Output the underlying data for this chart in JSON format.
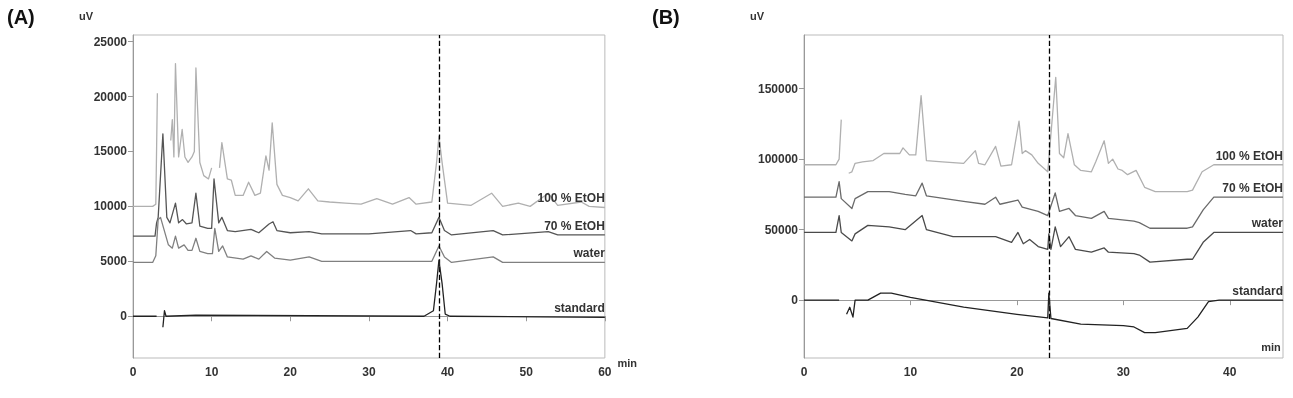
{
  "chart_data": [
    {
      "type": "line",
      "title": "(A)",
      "ylabel": "uV",
      "xlabel": "min",
      "xlim": [
        0,
        60
      ],
      "ylim": [
        -3800,
        25600
      ],
      "xticks": [
        0,
        10,
        20,
        30,
        40,
        50,
        60
      ],
      "yticks": [
        0,
        5000,
        10000,
        15000,
        20000,
        25000
      ],
      "ref_lines": [
        {
          "axis": "x",
          "value": 38.9,
          "color": "#000000",
          "line_style": "dashed"
        }
      ],
      "series": [
        {
          "name": "100 % EtOH",
          "color": "#b0b0b0",
          "x": [
            0,
            2.5,
            2.9,
            3.1,
            3.3,
            3.6,
            4.4,
            4.6,
            4.8,
            5.0,
            5.2,
            5.4,
            5.8,
            6.25,
            6.6,
            7.0,
            7.5,
            7.8,
            8.0,
            8.5,
            9.0,
            9.6,
            10.0,
            10.1,
            10.7,
            11.0,
            11.3,
            12.0,
            12.5,
            13,
            14,
            14.7,
            15.5,
            16.2,
            16.9,
            17.3,
            17.7,
            18.3,
            19,
            20,
            21,
            22.3,
            23.5,
            25,
            27,
            29,
            31,
            33,
            35.1,
            36,
            38,
            38.6,
            38.9,
            39.3,
            40,
            43,
            45.6,
            47,
            49,
            50.5,
            52.8,
            54,
            57,
            58,
            60
          ],
          "values": [
            10000,
            10000,
            10200,
            20300,
            null,
            null,
            null,
            null,
            16000,
            17900,
            14500,
            23000,
            14500,
            17000,
            14500,
            14000,
            14500,
            15000,
            22600,
            14000,
            12800,
            12500,
            13500,
            null,
            null,
            13500,
            15800,
            12500,
            12400,
            11000,
            11000,
            12200,
            11000,
            11200,
            14600,
            13300,
            17600,
            12000,
            11000,
            10800,
            10500,
            11600,
            10500,
            10400,
            10300,
            10200,
            10700,
            10200,
            10800,
            10200,
            10400,
            14000,
            16400,
            14000,
            10300,
            10100,
            11200,
            10000,
            10300,
            10000,
            11200,
            10100,
            10400,
            10000,
            9900
          ]
        },
        {
          "name": "70 % EtOH",
          "color": "#555555",
          "x": [
            0,
            2.8,
            3.0,
            3.2,
            3.8,
            4.3,
            4.7,
            5.4,
            5.8,
            6.3,
            6.8,
            7.5,
            8.0,
            8.5,
            9.5,
            10.0,
            10.3,
            10.9,
            11.3,
            12,
            13,
            15,
            16,
            17.3,
            17.8,
            18.3,
            20,
            22.4,
            24,
            30,
            35.3,
            36,
            38,
            38.9,
            39.6,
            40.5,
            45.8,
            47,
            52.8,
            54,
            60
          ],
          "values": [
            7300,
            7300,
            8500,
            9000,
            16600,
            9000,
            8500,
            10300,
            8500,
            8800,
            8400,
            8500,
            11200,
            8200,
            8000,
            8000,
            12500,
            8500,
            9000,
            7800,
            7700,
            7900,
            7600,
            8400,
            8600,
            7800,
            7600,
            7700,
            7500,
            7500,
            7800,
            7500,
            7600,
            9000,
            7800,
            7400,
            7800,
            7400,
            7700,
            7400,
            7400
          ]
        },
        {
          "name": "water",
          "color": "#808080",
          "x": [
            0,
            2.5,
            2.9,
            3.2,
            3.5,
            4.5,
            5.0,
            5.4,
            5.8,
            6.5,
            7.0,
            7.5,
            8.0,
            8.5,
            9.5,
            10.1,
            10.4,
            10.9,
            11.4,
            12,
            14,
            15,
            16,
            17,
            18,
            20,
            22.4,
            24,
            30,
            38,
            38.9,
            39.6,
            40.5,
            45.8,
            47,
            60
          ],
          "values": [
            4900,
            4900,
            5500,
            8800,
            9000,
            6500,
            6200,
            7300,
            6200,
            6500,
            6000,
            6000,
            7100,
            5900,
            5700,
            5700,
            8000,
            5900,
            6400,
            5400,
            5200,
            5500,
            5200,
            5900,
            5300,
            5100,
            5400,
            5000,
            5000,
            5000,
            6400,
            5400,
            4900,
            5400,
            4900,
            4900
          ]
        },
        {
          "name": "standard",
          "color": "#222222",
          "x": [
            0,
            3.0,
            3.1,
            3.35,
            3.6,
            3.8,
            4.0,
            4.2,
            8,
            37,
            38.2,
            38.6,
            38.9,
            39.3,
            39.7,
            40.3,
            60
          ],
          "values": [
            0,
            0,
            null,
            null,
            null,
            -1000,
            500,
            0,
            100,
            0,
            500,
            3000,
            5100,
            3000,
            200,
            0,
            -100
          ]
        }
      ]
    },
    {
      "type": "line",
      "title": "(B)",
      "ylabel": "uV",
      "xlabel": "min",
      "xlim": [
        0,
        45
      ],
      "ylim": [
        -41000,
        188000
      ],
      "xticks": [
        0,
        10,
        20,
        30,
        40
      ],
      "yticks": [
        0,
        50000,
        100000,
        150000
      ],
      "ref_lines": [
        {
          "axis": "x",
          "value": 23,
          "color": "#000000",
          "line_style": "dashed"
        }
      ],
      "series": [
        {
          "name": "100 % EtOH",
          "color": "#b0b0b0",
          "x": [
            0,
            3.0,
            3.3,
            3.5,
            3.7,
            4.2,
            4.5,
            4.8,
            5.5,
            6.5,
            7.5,
            9.0,
            9.3,
            9.9,
            10.5,
            11.0,
            11.5,
            13,
            15,
            16.1,
            16.4,
            17,
            18.0,
            18.5,
            19.5,
            20.2,
            20.5,
            20.8,
            21.4,
            22,
            22.9,
            23.65,
            24.0,
            24.4,
            24.8,
            25.4,
            26,
            27,
            27.4,
            28.2,
            28.6,
            29,
            29.5,
            29.9,
            30.4,
            31.2,
            32,
            33,
            36,
            36.5,
            37.4,
            38.5,
            45
          ],
          "values": [
            96000,
            96000,
            100000,
            128000,
            null,
            90000,
            91000,
            97000,
            98000,
            99000,
            104000,
            104000,
            108000,
            103000,
            103000,
            145000,
            99000,
            98000,
            97000,
            106000,
            97000,
            96000,
            109000,
            95000,
            96000,
            127000,
            104000,
            106000,
            103000,
            97000,
            91000,
            158000,
            104000,
            101000,
            118000,
            96000,
            92000,
            91000,
            98000,
            113000,
            97000,
            100000,
            93000,
            92000,
            89000,
            92000,
            80000,
            77000,
            77000,
            78000,
            91000,
            96000,
            96000
          ]
        },
        {
          "name": "70 % EtOH",
          "color": "#6a6a6a",
          "x": [
            0,
            3.0,
            3.3,
            3.5,
            4.5,
            4.8,
            6,
            8,
            9.5,
            10.5,
            11.1,
            11.5,
            15,
            17,
            18.0,
            18.4,
            20.1,
            20.5,
            22,
            22.9,
            23.6,
            24,
            24.9,
            25.5,
            27,
            28.2,
            28.6,
            31,
            31.5,
            32.5,
            36,
            36.5,
            37.5,
            38.5,
            45
          ],
          "values": [
            73000,
            73000,
            84000,
            72000,
            65000,
            72000,
            77000,
            77000,
            75000,
            74000,
            83000,
            74000,
            70000,
            68000,
            73000,
            68000,
            71000,
            66000,
            63000,
            60000,
            76000,
            63000,
            65000,
            60000,
            58000,
            63000,
            58000,
            56000,
            55000,
            51000,
            51000,
            52000,
            64000,
            73000,
            73000
          ]
        },
        {
          "name": "water",
          "color": "#4a4a4a",
          "x": [
            0,
            3.0,
            3.3,
            3.5,
            4.5,
            4.8,
            6,
            8,
            9.5,
            11.1,
            11.5,
            14,
            16.1,
            18,
            19.5,
            20.1,
            20.6,
            21.2,
            22,
            22.9,
            23.0,
            23.2,
            23.6,
            24.1,
            24.9,
            25.5,
            27,
            28.2,
            28.6,
            31,
            31.5,
            32.5,
            36,
            36.5,
            37.5,
            38.5,
            45
          ],
          "values": [
            48000,
            48000,
            60000,
            48000,
            42000,
            47000,
            53000,
            52000,
            50000,
            60000,
            50000,
            45000,
            45000,
            45000,
            41000,
            48000,
            40000,
            43000,
            38000,
            36000,
            47000,
            36000,
            52000,
            38000,
            45000,
            36000,
            34000,
            37000,
            34000,
            33000,
            32000,
            27000,
            29000,
            29000,
            41000,
            48000,
            48000
          ]
        },
        {
          "name": "standard",
          "color": "#222222",
          "x": [
            0,
            3.3,
            3.45,
            3.65,
            3.85,
            4.0,
            4.3,
            4.6,
            4.8,
            6,
            7.2,
            8.2,
            10,
            15,
            20,
            22.9,
            23.0,
            23.2,
            26,
            30,
            31,
            32,
            33,
            36,
            37,
            38,
            39,
            45
          ],
          "values": [
            0,
            0,
            null,
            null,
            null,
            -10000,
            -5000,
            -12000,
            0,
            0,
            5000,
            5000,
            2000,
            -5000,
            -10000,
            -12500,
            5000,
            -13000,
            -17000,
            -18000,
            -19000,
            -23000,
            -23000,
            -20000,
            -12000,
            -1000,
            0,
            0
          ]
        }
      ]
    }
  ]
}
